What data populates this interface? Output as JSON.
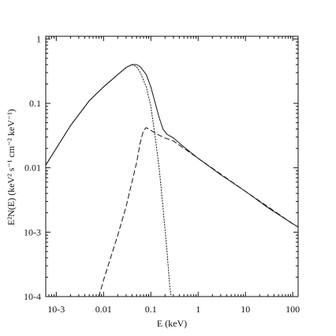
{
  "chart_data": {
    "type": "line",
    "xlabel": "E (keV)",
    "ylabel": "E²N(E) (keV² s⁻¹ cm⁻² keV⁻¹)",
    "xscale": "log",
    "yscale": "log",
    "xlim": [
      0.0006,
      130
    ],
    "ylim": [
      0.0001,
      1.1
    ],
    "grid": false,
    "x_tick_labels": [
      {
        "value": 0.001,
        "text": "10-3"
      },
      {
        "value": 0.01,
        "text": "0.01"
      },
      {
        "value": 0.1,
        "text": "0.1"
      },
      {
        "value": 1,
        "text": "1"
      },
      {
        "value": 10,
        "text": "10"
      },
      {
        "value": 100,
        "text": "100"
      }
    ],
    "y_tick_labels": [
      {
        "value": 0.0001,
        "text": "10-4"
      },
      {
        "value": 0.001,
        "text": "10-3"
      },
      {
        "value": 0.01,
        "text": "0.01"
      },
      {
        "value": 0.1,
        "text": "0.1"
      },
      {
        "value": 1,
        "text": "1"
      }
    ],
    "series": [
      {
        "style": "solid",
        "color": "#111111",
        "points": [
          [
            0.0006,
            0.011
          ],
          [
            0.001,
            0.02
          ],
          [
            0.002,
            0.045
          ],
          [
            0.005,
            0.11
          ],
          [
            0.01,
            0.18
          ],
          [
            0.02,
            0.28
          ],
          [
            0.03,
            0.36
          ],
          [
            0.04,
            0.4
          ],
          [
            0.05,
            0.4
          ],
          [
            0.06,
            0.37
          ],
          [
            0.08,
            0.28
          ],
          [
            0.1,
            0.18
          ],
          [
            0.12,
            0.11
          ],
          [
            0.15,
            0.06
          ],
          [
            0.18,
            0.04
          ],
          [
            0.22,
            0.033
          ],
          [
            0.3,
            0.029
          ],
          [
            0.5,
            0.021
          ],
          [
            1,
            0.014
          ],
          [
            3,
            0.0078
          ],
          [
            10,
            0.0043
          ],
          [
            30,
            0.0024
          ],
          [
            100,
            0.00135
          ],
          [
            130,
            0.0012
          ]
        ]
      },
      {
        "style": "dotted",
        "color": "#111111",
        "points": [
          [
            0.0006,
            0.011
          ],
          [
            0.001,
            0.02
          ],
          [
            0.002,
            0.045
          ],
          [
            0.005,
            0.11
          ],
          [
            0.01,
            0.18
          ],
          [
            0.02,
            0.28
          ],
          [
            0.03,
            0.36
          ],
          [
            0.04,
            0.4
          ],
          [
            0.05,
            0.37
          ],
          [
            0.06,
            0.3
          ],
          [
            0.08,
            0.18
          ],
          [
            0.1,
            0.09
          ],
          [
            0.12,
            0.035
          ],
          [
            0.15,
            0.01
          ],
          [
            0.18,
            0.0025
          ],
          [
            0.22,
            0.0005
          ],
          [
            0.25,
            0.00015
          ],
          [
            0.27,
            0.0001
          ]
        ]
      },
      {
        "style": "dashed",
        "color": "#111111",
        "points": [
          [
            0.008,
            0.0001
          ],
          [
            0.01,
            0.00018
          ],
          [
            0.02,
            0.0009
          ],
          [
            0.03,
            0.0025
          ],
          [
            0.05,
            0.012
          ],
          [
            0.06,
            0.025
          ],
          [
            0.07,
            0.038
          ],
          [
            0.08,
            0.042
          ],
          [
            0.1,
            0.038
          ],
          [
            0.15,
            0.032
          ],
          [
            0.2,
            0.029
          ],
          [
            0.3,
            0.026
          ],
          [
            1,
            0.014
          ],
          [
            10,
            0.0043
          ],
          [
            100,
            0.00135
          ],
          [
            130,
            0.0012
          ]
        ]
      }
    ]
  }
}
